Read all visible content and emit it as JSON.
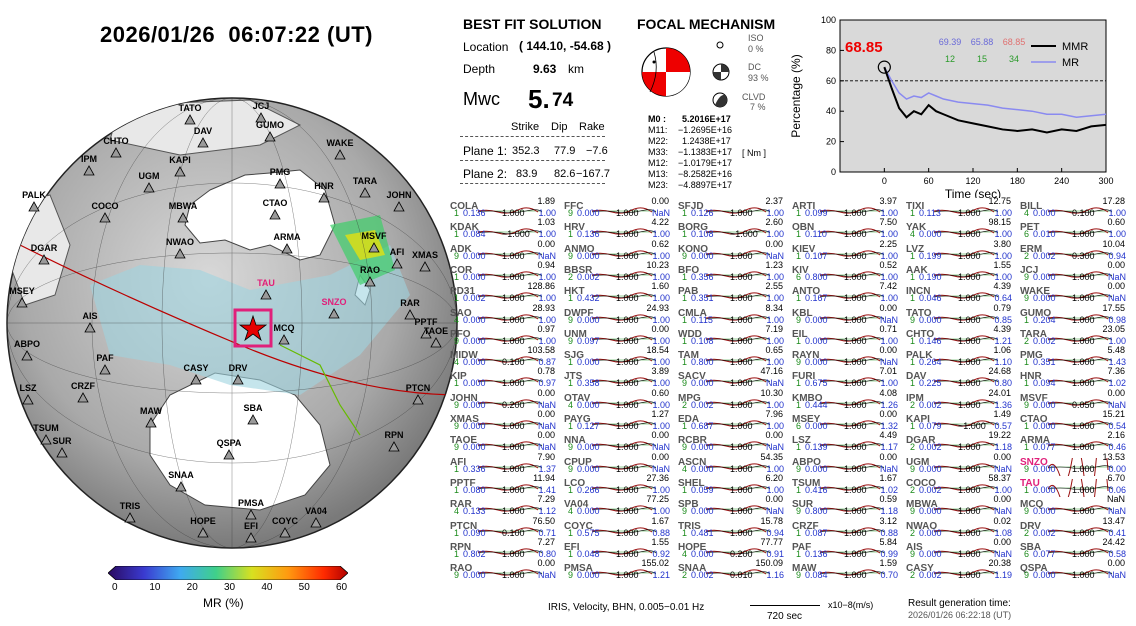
{
  "header": {
    "title": "2026/01/26  06:07:22 (UT)"
  },
  "colorbar": {
    "label": "MR (%)",
    "ticks": [
      "0",
      "10",
      "20",
      "30",
      "40",
      "50",
      "60"
    ]
  },
  "globe": {
    "stations": [
      "TATO",
      "JCJ",
      "DAV",
      "GUMO",
      "CHTO",
      "WAKE",
      "IPM",
      "KAPI",
      "UGM",
      "PMG",
      "HNR",
      "TARA",
      "JOHN",
      "PALK",
      "COCO",
      "MBWA",
      "CTAO",
      "NWAO",
      "ARMA",
      "MSVF",
      "AFI",
      "XMAS",
      "DGAR",
      "TAU",
      "RAO",
      "MSEY",
      "SNZO",
      "RAR",
      "PPTF",
      "TAOE",
      "AIS",
      "MCQ",
      "ABPO",
      "PAF",
      "CASY",
      "DRV",
      "LSZ",
      "CRZF",
      "PTCN",
      "MAW",
      "SBA",
      "TSUM",
      "SUR",
      "QSPA",
      "RPN",
      "SNAA",
      "TRIS",
      "PMSA",
      "HOPE",
      "EFI",
      "COYC",
      "VA04"
    ]
  },
  "solution": {
    "title": "BEST FIT SOLUTION",
    "location_label": "Location",
    "location_value": "( 144.10,  -54.68 )",
    "depth_label": "Depth",
    "depth_value": "9.63",
    "depth_unit": "km",
    "mw_label": "Mwc",
    "mw_int": "5.",
    "mw_dec": "74",
    "col_strike": "Strike",
    "col_dip": "Dip",
    "col_rake": "Rake",
    "plane1_label": "Plane 1:",
    "plane1_strike": "352.3",
    "plane1_dip": "77.9",
    "plane1_rake": "−7.6",
    "plane2_label": "Plane 2:",
    "plane2_strike": "83.9",
    "plane2_dip": "82.6",
    "plane2_rake": "−167.7"
  },
  "focal": {
    "title": "FOCAL MECHANISM",
    "iso_label": "ISO",
    "iso_value": "0 %",
    "dc_label": "DC",
    "dc_value": "93 %",
    "clvd_label": "CLVD",
    "clvd_value": "7 %",
    "m0_label": "M0 :",
    "m0_value": "5.2016E+17",
    "m11_label": "M11:",
    "m11_value": "−1.2695E+16",
    "m22_label": "M22:",
    "m22_value": "1.2438E+17",
    "m33_label": "M33:",
    "m33_value": "−1.1383E+17",
    "m12_label": "M12:",
    "m12_value": "−1.0179E+17",
    "m13_label": "M13:",
    "m13_value": "−8.2582E+16",
    "m23_label": "M23:",
    "m23_value": "−4.8897E+17",
    "unit": "[ Nm ]"
  },
  "mr_chart": {
    "ylabel": "Percentage (%)",
    "xlabel": "Time (sec)",
    "highlight_value": "68.85",
    "top_values": [
      "69.39",
      "65.88",
      "68.85"
    ],
    "bottom_values": [
      "12",
      "15",
      "34"
    ],
    "legend": [
      "MMR",
      "MR"
    ],
    "x_ticks": [
      "0",
      "60",
      "120",
      "180",
      "240",
      "300"
    ],
    "y_ticks": [
      "0",
      "20",
      "40",
      "60",
      "80",
      "100"
    ]
  },
  "chart_data": {
    "type": "line",
    "xlabel": "Time (sec)",
    "ylabel": "Percentage (%)",
    "xlim": [
      -60,
      300
    ],
    "ylim": [
      0,
      100
    ],
    "threshold": 60,
    "series": [
      {
        "name": "MMR",
        "x": [
          0,
          10,
          20,
          30,
          40,
          50,
          60,
          70,
          80,
          100,
          120,
          140,
          160,
          180,
          200,
          220,
          240,
          260,
          280,
          300
        ],
        "y": [
          69,
          55,
          42,
          36,
          40,
          38,
          44,
          40,
          38,
          34,
          32,
          30,
          28,
          27,
          28,
          26,
          28,
          27,
          30,
          31
        ]
      },
      {
        "name": "MR",
        "x": [
          0,
          10,
          20,
          30,
          40,
          50,
          60,
          70,
          80,
          100,
          120,
          140,
          160,
          180,
          200,
          220,
          240,
          260,
          280,
          300
        ],
        "y": [
          69,
          60,
          52,
          48,
          50,
          49,
          52,
          50,
          48,
          46,
          45,
          44,
          42,
          41,
          40,
          38,
          38,
          36,
          37,
          38
        ]
      }
    ]
  },
  "stations": {
    "footer_left": "IRIS, Velocity,   BHN, 0.005−0.01 Hz",
    "scale_label": "720 sec",
    "unit_label": "x10−8(m/s)",
    "result_label": "Result generation time:",
    "result_time": "2026/01/26 06:22:18 (UT)",
    "columns": [
      [
        [
          "COLA",
          "1.89",
          "1",
          "0.136",
          "1.000",
          "1.00"
        ],
        [
          "KDAK",
          "1.03",
          "1",
          "0.084",
          "−1.000",
          "1.00"
        ],
        [
          "ADK",
          "0.00",
          "9",
          "0.000",
          "1.000",
          "NaN"
        ],
        [
          "COR",
          "0.94",
          "1",
          "0.000",
          "1.000",
          "1.00"
        ],
        [
          "PD31",
          "128.86",
          "1",
          "0.002",
          "1.000",
          "1.00"
        ],
        [
          "SAO",
          "28.93",
          "4",
          "0.000",
          "1.000",
          "1.00"
        ],
        [
          "PFO",
          "0.97",
          "9",
          "0.000",
          "1.000",
          "1.00"
        ],
        [
          "MIDW",
          "103.58",
          "4",
          "0.000",
          "0.100",
          "0.87"
        ],
        [
          "KIP",
          "0.78",
          "1",
          "0.000",
          "1.000",
          "0.97"
        ],
        [
          "JOHN",
          "0.00",
          "9",
          "0.000",
          "0.200",
          "NaN"
        ],
        [
          "XMAS",
          "0.00",
          "9",
          "0.000",
          "1.000",
          "NaN"
        ],
        [
          "TAOE",
          "0.00",
          "9",
          "0.000",
          "1.000",
          "NaN"
        ],
        [
          "AFI",
          "7.90",
          "1",
          "0.336",
          "1.000",
          "1.37"
        ],
        [
          "PPTF",
          "11.94",
          "1",
          "0.080",
          "1.000",
          "1.41"
        ],
        [
          "RAR",
          "7.29",
          "4",
          "0.133",
          "1.000",
          "1.12"
        ],
        [
          "PTCN",
          "76.50",
          "1",
          "0.090",
          "0.100",
          "0.71"
        ],
        [
          "RPN",
          "7.27",
          "1",
          "0.802",
          "1.000",
          "0.80"
        ],
        [
          "RAO",
          "0.00",
          "9",
          "0.000",
          "1.000",
          "NaN"
        ]
      ],
      [
        [
          "FFC",
          "0.00",
          "9",
          "0.000",
          "1.000",
          "NaN"
        ],
        [
          "HRV",
          "4.22",
          "1",
          "0.136",
          "1.000",
          "1.00"
        ],
        [
          "ANMO",
          "0.62",
          "9",
          "0.000",
          "1.000",
          "1.00"
        ],
        [
          "BBSR",
          "10.23",
          "2",
          "0.002",
          "1.000",
          "1.00"
        ],
        [
          "HKT",
          "1.60",
          "1",
          "0.432",
          "1.000",
          "1.00"
        ],
        [
          "DWPF",
          "24.93",
          "9",
          "0.000",
          "1.000",
          "1.00"
        ],
        [
          "UNM",
          "0.00",
          "9",
          "0.097",
          "1.000",
          "1.00"
        ],
        [
          "SJG",
          "18.54",
          "1",
          "0.000",
          "1.000",
          "1.00"
        ],
        [
          "JTS",
          "3.89",
          "1",
          "0.358",
          "1.000",
          "1.00"
        ],
        [
          "OTAV",
          "0.60",
          "4",
          "0.000",
          "1.000",
          "1.00"
        ],
        [
          "PAYG",
          "1.27",
          "1",
          "0.127",
          "1.000",
          "1.00"
        ],
        [
          "NNA",
          "0.00",
          "9",
          "0.000",
          "1.000",
          "NaN"
        ],
        [
          "CPUP",
          "0.00",
          "9",
          "0.000",
          "1.000",
          "NaN"
        ],
        [
          "LCO",
          "27.36",
          "1",
          "0.266",
          "1.000",
          "1.00"
        ],
        [
          "VA04",
          "77.25",
          "4",
          "0.000",
          "1.000",
          "1.00"
        ],
        [
          "COYC",
          "1.67",
          "1",
          "0.575",
          "1.000",
          "0.88"
        ],
        [
          "EFI",
          "1.55",
          "1",
          "0.048",
          "1.000",
          "0.92"
        ],
        [
          "PMSA",
          "155.02",
          "9",
          "0.000",
          "1.000",
          "1.21"
        ]
      ],
      [
        [
          "SFJD",
          "2.37",
          "1",
          "0.126",
          "1.000",
          "1.00"
        ],
        [
          "BORG",
          "2.60",
          "1",
          "0.108",
          "−1.000",
          "1.00"
        ],
        [
          "KONO",
          "0.00",
          "9",
          "0.000",
          "1.000",
          "NaN"
        ],
        [
          "BFO",
          "1.23",
          "1",
          "0.356",
          "1.000",
          "1.00"
        ],
        [
          "PAB",
          "2.55",
          "1",
          "0.351",
          "1.000",
          "1.00"
        ],
        [
          "CMLA",
          "8.34",
          "1",
          "0.115",
          "1.000",
          "1.00"
        ],
        [
          "WDD",
          "7.19",
          "1",
          "0.108",
          "1.000",
          "1.00"
        ],
        [
          "TAM",
          "0.65",
          "1",
          "0.800",
          "1.000",
          "1.00"
        ],
        [
          "SACV",
          "47.16",
          "9",
          "0.000",
          "1.000",
          "NaN"
        ],
        [
          "MPG",
          "10.30",
          "2",
          "0.002",
          "1.000",
          "1.00"
        ],
        [
          "EDA",
          "7.96",
          "1",
          "0.687",
          "1.000",
          "1.00"
        ],
        [
          "RCBR",
          "0.00",
          "9",
          "0.000",
          "1.000",
          "NaN"
        ],
        [
          "ASCN",
          "54.35",
          "4",
          "0.000",
          "1.000",
          "1.00"
        ],
        [
          "SHEL",
          "6.20",
          "1",
          "0.059",
          "1.000",
          "1.00"
        ],
        [
          "SPB",
          "0.00",
          "9",
          "0.000",
          "1.000",
          "NaN"
        ],
        [
          "TRIS",
          "15.78",
          "1",
          "0.481",
          "1.000",
          "0.94"
        ],
        [
          "HOPE",
          "77.77",
          "4",
          "0.000",
          "0.200",
          "0.91"
        ],
        [
          "SNAA",
          "150.09",
          "2",
          "0.002",
          "0.010",
          "1.16"
        ]
      ],
      [
        [
          "ARTI",
          "3.97",
          "1",
          "0.099",
          "1.000",
          "1.00"
        ],
        [
          "OBN",
          "7.50",
          "1",
          "0.110",
          "1.000",
          "1.00"
        ],
        [
          "KIEV",
          "2.25",
          "1",
          "0.107",
          "1.000",
          "1.00"
        ],
        [
          "KIV",
          "0.52",
          "6",
          "0.800",
          "1.000",
          "1.00"
        ],
        [
          "ANTO",
          "7.42",
          "1",
          "0.167",
          "1.000",
          "1.00"
        ],
        [
          "KBL",
          "0.00",
          "9",
          "0.000",
          "1.000",
          "NaN"
        ],
        [
          "EIL",
          "0.71",
          "1",
          "0.000",
          "1.000",
          "1.00"
        ],
        [
          "RAYN",
          "0.00",
          "9",
          "0.000",
          "1.000",
          "NaN"
        ],
        [
          "FURI",
          "7.01",
          "1",
          "0.675",
          "1.000",
          "1.00"
        ],
        [
          "KMBO",
          "4.08",
          "1",
          "0.444",
          "1.000",
          "1.26"
        ],
        [
          "MSEY",
          "0.00",
          "6",
          "0.000",
          "1.000",
          "1.32"
        ],
        [
          "LSZ",
          "4.49",
          "1",
          "0.139",
          "1.000",
          "1.17"
        ],
        [
          "ABPO",
          "0.00",
          "9",
          "0.000",
          "1.000",
          "NaN"
        ],
        [
          "TSUM",
          "1.67",
          "1",
          "0.416",
          "1.000",
          "1.02"
        ],
        [
          "SUR",
          "0.59",
          "9",
          "0.800",
          "1.000",
          "1.18"
        ],
        [
          "CRZF",
          "3.12",
          "1",
          "0.087",
          "1.000",
          "0.88"
        ],
        [
          "PAF",
          "5.84",
          "1",
          "0.136",
          "1.000",
          "0.99"
        ],
        [
          "MAW",
          "1.59",
          "9",
          "0.084",
          "1.000",
          "0.70"
        ]
      ],
      [
        [
          "TIXI",
          "12.75",
          "1",
          "0.113",
          "1.000",
          "1.00"
        ],
        [
          "YAK",
          "98.15",
          "4",
          "0.000",
          "1.000",
          "1.00"
        ],
        [
          "LVZ",
          "3.80",
          "1",
          "0.199",
          "1.000",
          "1.00"
        ],
        [
          "AAK",
          "1.55",
          "1",
          "0.190",
          "1.000",
          "1.00"
        ],
        [
          "INCN",
          "4.39",
          "1",
          "0.046",
          "1.000",
          "0.64"
        ],
        [
          "TATO",
          "0.79",
          "9",
          "0.000",
          "1.000",
          "0.85"
        ],
        [
          "CHTO",
          "4.39",
          "1",
          "0.146",
          "1.000",
          "1.21"
        ],
        [
          "PALK",
          "1.06",
          "1",
          "0.264",
          "1.000",
          "1.10"
        ],
        [
          "DAV",
          "24.68",
          "1",
          "0.225",
          "1.000",
          "0.80"
        ],
        [
          "IPM",
          "24.01",
          "2",
          "0.002",
          "1.000",
          "1.36"
        ],
        [
          "KAPI",
          "1.49",
          "1",
          "0.079",
          "−1.000",
          "0.57"
        ],
        [
          "DGAR",
          "19.22",
          "2",
          "0.002",
          "1.000",
          "1.18"
        ],
        [
          "UGM",
          "0.00",
          "9",
          "0.000",
          "1.000",
          "NaN"
        ],
        [
          "COCO",
          "58.37",
          "2",
          "0.002",
          "1.000",
          "1.00"
        ],
        [
          "MBWA",
          "0.00",
          "9",
          "0.000",
          "1.000",
          "NaN"
        ],
        [
          "NWAO",
          "0.02",
          "2",
          "0.000",
          "1.000",
          "1.08"
        ],
        [
          "AIS",
          "0.00",
          "9",
          "0.000",
          "1.000",
          "NaN"
        ],
        [
          "CASY",
          "20.38",
          "2",
          "0.002",
          "1.000",
          "1.19"
        ]
      ],
      [
        [
          "BILL",
          "17.28",
          "4",
          "0.000",
          "0.100",
          "1.00"
        ],
        [
          "PET",
          "0.60",
          "6",
          "0.010",
          "1.000",
          "1.00"
        ],
        [
          "ERM",
          "10.04",
          "2",
          "0.002",
          "0.300",
          "0.94"
        ],
        [
          "JCJ",
          "0.00",
          "9",
          "0.000",
          "1.000",
          "NaN"
        ],
        [
          "WAKE",
          "0.00",
          "9",
          "0.000",
          "1.000",
          "NaN"
        ],
        [
          "GUMO",
          "17.55",
          "1",
          "0.204",
          "1.000",
          "0.98"
        ],
        [
          "TARA",
          "23.05",
          "2",
          "0.002",
          "1.000",
          "1.00"
        ],
        [
          "PMG",
          "5.48",
          "1",
          "0.351",
          "1.000",
          "1.43"
        ],
        [
          "HNR",
          "7.36",
          "1",
          "0.094",
          "1.000",
          "1.02"
        ],
        [
          "MSVF",
          "0.00",
          "9",
          "0.000",
          "0.050",
          "NaN"
        ],
        [
          "CTAO",
          "15.21",
          "1",
          "0.000",
          "1.000",
          "0.54"
        ],
        [
          "ARMA",
          "2.16",
          "1",
          "0.077",
          "1.000",
          "0.46"
        ],
        [
          "SNZO",
          "13.53",
          "9",
          "0.000",
          "1.000",
          "0.00"
        ],
        [
          "TAU",
          "6.70",
          "1",
          "0.000",
          "1.000",
          "0.06"
        ],
        [
          "MCQ",
          "NaN",
          "9",
          "0.000",
          "1.000",
          "NaN"
        ],
        [
          "DRV",
          "13.47",
          "2",
          "0.002",
          "1.000",
          "0.41"
        ],
        [
          "SBA",
          "24.42",
          "6",
          "0.077",
          "1.000",
          "0.58"
        ],
        [
          "QSPA",
          "0.00",
          "9",
          "0.000",
          "1.000",
          "NaN"
        ]
      ]
    ]
  }
}
